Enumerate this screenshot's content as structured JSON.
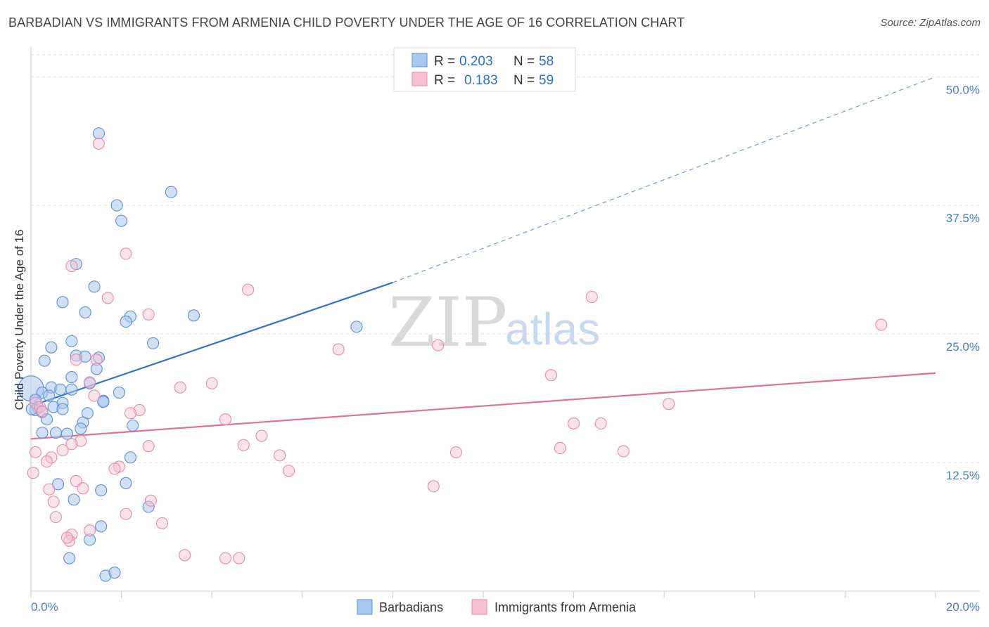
{
  "header": {
    "title": "BARBADIAN VS IMMIGRANTS FROM ARMENIA CHILD POVERTY UNDER THE AGE OF 16 CORRELATION CHART",
    "source": "Source: ZipAtlas.com"
  },
  "watermark": {
    "zip": "ZIP",
    "atlas": "atlas"
  },
  "legend": {
    "rows": [
      {
        "r_label": "R =",
        "r_value": "0.203",
        "n_label": "N =",
        "n_value": "58"
      },
      {
        "r_label": "R =",
        "r_value": "0.183",
        "n_label": "N =",
        "n_value": "59"
      }
    ]
  },
  "bottom_legend": {
    "series1": "Barbadians",
    "series2": "Immigrants from Armenia"
  },
  "colors": {
    "blue_fill": "#a9c8ef",
    "blue_stroke": "#5b8fd6",
    "blue_line": "#2f72d0",
    "pink_fill": "#f6c0d0",
    "pink_stroke": "#e88aa8",
    "pink_line": "#e0709a",
    "grid": "#dddddd",
    "axis_label": "#4a7fcc"
  },
  "chart_data": {
    "type": "scatter",
    "title": "BARBADIAN VS IMMIGRANTS FROM ARMENIA CHILD POVERTY UNDER THE AGE OF 16 CORRELATION CHART",
    "xlabel": "",
    "ylabel": "Child Poverty Under the Age of 16",
    "xlim": [
      0,
      20
    ],
    "ylim": [
      0,
      52
    ],
    "x_tick_labels": [
      "0.0%",
      "20.0%"
    ],
    "y_ticks": [
      12.5,
      25.0,
      37.5,
      50.0
    ],
    "y_tick_labels": [
      "12.5%",
      "25.0%",
      "37.5%",
      "50.0%"
    ],
    "series": [
      {
        "name": "Barbadians",
        "R": 0.203,
        "N": 58,
        "trend": {
          "x0": 0,
          "y0": 18.0,
          "x1": 8.0,
          "y1": 30.0,
          "dash_x1": 20.0,
          "dash_y1": 50.0
        },
        "points": [
          [
            1.5,
            44.5
          ],
          [
            3.1,
            38.8
          ],
          [
            1.9,
            37.5
          ],
          [
            2.0,
            36.0
          ],
          [
            1.0,
            31.8
          ],
          [
            1.4,
            29.6
          ],
          [
            0.7,
            28.1
          ],
          [
            1.2,
            27.1
          ],
          [
            2.2,
            26.7
          ],
          [
            3.6,
            26.8
          ],
          [
            2.1,
            26.2
          ],
          [
            7.2,
            25.7
          ],
          [
            0.9,
            24.3
          ],
          [
            2.7,
            24.1
          ],
          [
            0.45,
            23.7
          ],
          [
            1.0,
            22.9
          ],
          [
            1.2,
            22.8
          ],
          [
            1.5,
            22.7
          ],
          [
            0.3,
            22.4
          ],
          [
            1.45,
            21.6
          ],
          [
            0.9,
            20.8
          ],
          [
            1.3,
            20.2
          ],
          [
            0.0,
            19.7
          ],
          [
            0.45,
            19.8
          ],
          [
            0.9,
            19.6
          ],
          [
            0.65,
            19.6
          ],
          [
            0.25,
            19.3
          ],
          [
            0.4,
            19.0
          ],
          [
            1.95,
            19.3
          ],
          [
            0.1,
            18.6
          ],
          [
            0.7,
            18.3
          ],
          [
            1.6,
            18.5
          ],
          [
            1.6,
            18.4
          ],
          [
            0.15,
            17.9
          ],
          [
            0.5,
            17.9
          ],
          [
            0.7,
            17.7
          ],
          [
            0.1,
            17.6
          ],
          [
            0.25,
            17.4
          ],
          [
            1.25,
            17.3
          ],
          [
            0.35,
            16.7
          ],
          [
            1.15,
            16.4
          ],
          [
            2.25,
            16.1
          ],
          [
            1.1,
            15.8
          ],
          [
            0.25,
            15.4
          ],
          [
            0.55,
            15.4
          ],
          [
            0.8,
            15.3
          ],
          [
            2.2,
            13.0
          ],
          [
            0.6,
            10.4
          ],
          [
            2.1,
            10.5
          ],
          [
            1.55,
            9.8
          ],
          [
            0.95,
            8.9
          ],
          [
            2.6,
            8.2
          ],
          [
            1.55,
            6.3
          ],
          [
            1.3,
            5.0
          ],
          [
            0.85,
            3.2
          ],
          [
            1.65,
            1.5
          ],
          [
            1.85,
            1.8
          ],
          [
            0.02,
            17.7
          ]
        ],
        "sizes_note": "one large point at x=0.0,y=19.7"
      },
      {
        "name": "Immigrants from Armenia",
        "R": 0.183,
        "N": 59,
        "trend": {
          "x0": 0,
          "y0": 14.8,
          "x1": 20.0,
          "y1": 21.2
        },
        "points": [
          [
            1.5,
            43.5
          ],
          [
            2.1,
            32.8
          ],
          [
            0.9,
            31.6
          ],
          [
            4.8,
            29.3
          ],
          [
            12.4,
            28.6
          ],
          [
            1.7,
            28.5
          ],
          [
            2.6,
            26.9
          ],
          [
            18.8,
            25.9
          ],
          [
            9.0,
            23.9
          ],
          [
            6.8,
            23.5
          ],
          [
            1.0,
            22.5
          ],
          [
            1.45,
            22.5
          ],
          [
            11.5,
            21.0
          ],
          [
            4.0,
            20.2
          ],
          [
            3.3,
            19.8
          ],
          [
            1.3,
            20.3
          ],
          [
            1.4,
            19.0
          ],
          [
            14.1,
            18.2
          ],
          [
            0.1,
            18.3
          ],
          [
            0.2,
            17.9
          ],
          [
            0.25,
            17.5
          ],
          [
            2.4,
            17.6
          ],
          [
            2.2,
            17.3
          ],
          [
            4.3,
            16.7
          ],
          [
            12.0,
            16.3
          ],
          [
            12.6,
            16.3
          ],
          [
            5.1,
            15.1
          ],
          [
            1.1,
            14.6
          ],
          [
            0.9,
            14.3
          ],
          [
            2.6,
            14.1
          ],
          [
            4.7,
            14.2
          ],
          [
            11.7,
            13.9
          ],
          [
            0.7,
            13.7
          ],
          [
            13.1,
            13.6
          ],
          [
            0.1,
            13.5
          ],
          [
            0.45,
            13.0
          ],
          [
            9.4,
            13.5
          ],
          [
            5.5,
            13.2
          ],
          [
            0.35,
            12.6
          ],
          [
            1.95,
            12.1
          ],
          [
            1.85,
            11.9
          ],
          [
            5.7,
            11.7
          ],
          [
            0.05,
            11.5
          ],
          [
            1.0,
            10.7
          ],
          [
            1.15,
            10.0
          ],
          [
            8.9,
            10.2
          ],
          [
            0.4,
            9.9
          ],
          [
            2.65,
            8.8
          ],
          [
            0.5,
            8.7
          ],
          [
            2.1,
            7.5
          ],
          [
            0.55,
            7.2
          ],
          [
            2.9,
            6.6
          ],
          [
            1.3,
            5.9
          ],
          [
            0.9,
            5.5
          ],
          [
            0.85,
            4.9
          ],
          [
            0.8,
            5.2
          ],
          [
            3.4,
            3.5
          ],
          [
            4.3,
            3.2
          ],
          [
            4.6,
            3.2
          ]
        ]
      }
    ],
    "legend_position": "top-center"
  }
}
